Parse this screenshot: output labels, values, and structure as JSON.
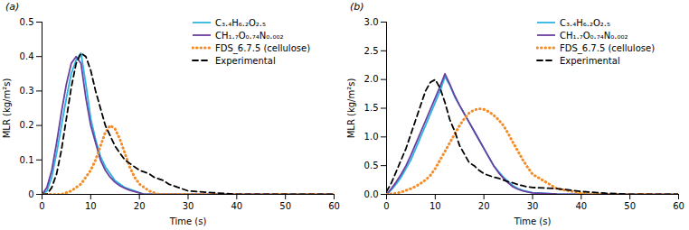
{
  "chart_data": [
    {
      "type": "line",
      "title": "(a)",
      "x_label": "Time (s)",
      "y_label": "MLR (kg/m²s)",
      "legend": "top-right",
      "x": [
        0,
        1,
        2,
        3,
        4,
        5,
        6,
        7,
        8,
        9,
        10,
        11,
        12,
        13,
        14,
        15,
        16,
        17,
        18,
        19,
        20,
        21,
        22,
        23,
        24,
        25,
        26,
        27,
        28,
        29,
        30,
        35,
        40,
        45,
        50,
        55,
        60
      ],
      "xlim": [
        0,
        60
      ],
      "xticks": [
        0,
        10,
        20,
        30,
        40,
        50,
        60
      ],
      "ylim": [
        0,
        0.5
      ],
      "yticks": [
        0,
        0.1,
        0.2,
        0.3,
        0.4,
        0.5
      ],
      "series": [
        {
          "name": "C₃.₄H₆.₂O₂.₅",
          "color": "#2bb5e3",
          "line_style": "solid",
          "values": [
            0,
            0.01,
            0.05,
            0.12,
            0.2,
            0.28,
            0.35,
            0.39,
            0.41,
            0.32,
            0.22,
            0.16,
            0.11,
            0.08,
            0.06,
            0.04,
            0.03,
            0.02,
            0.015,
            0.01,
            0.005,
            0,
            0,
            0,
            0,
            0,
            0,
            0,
            0,
            0,
            0,
            0,
            0,
            0,
            0,
            0,
            0
          ]
        },
        {
          "name": "CH₁.₇O₀.₇₄N₀.₀₀₂",
          "color": "#6b3fa0",
          "line_style": "solid",
          "values": [
            0,
            0.02,
            0.07,
            0.15,
            0.24,
            0.32,
            0.38,
            0.4,
            0.38,
            0.28,
            0.2,
            0.15,
            0.1,
            0.07,
            0.05,
            0.035,
            0.025,
            0.018,
            0.012,
            0.008,
            0.004,
            0,
            0,
            0,
            0,
            0,
            0,
            0,
            0,
            0,
            0,
            0,
            0,
            0,
            0,
            0,
            0
          ]
        },
        {
          "name": "FDS_6.7.5 (cellulose)",
          "color": "#f28c28",
          "line_style": "dotted",
          "values": [
            0,
            0,
            0,
            0,
            0,
            0.005,
            0.01,
            0.02,
            0.03,
            0.05,
            0.07,
            0.1,
            0.14,
            0.18,
            0.2,
            0.19,
            0.16,
            0.12,
            0.08,
            0.05,
            0.03,
            0.02,
            0.01,
            0.005,
            0,
            0,
            0,
            0,
            0,
            0,
            0,
            0,
            0,
            0,
            0,
            0,
            0
          ]
        },
        {
          "name": "Experimental",
          "color": "#000000",
          "line_style": "dashed",
          "values": [
            0,
            0,
            0.02,
            0.06,
            0.13,
            0.22,
            0.31,
            0.38,
            0.41,
            0.4,
            0.36,
            0.3,
            0.25,
            0.2,
            0.17,
            0.14,
            0.12,
            0.1,
            0.09,
            0.08,
            0.07,
            0.065,
            0.06,
            0.05,
            0.045,
            0.04,
            0.03,
            0.025,
            0.02,
            0.015,
            0.01,
            0.005,
            0,
            0,
            0,
            0,
            0
          ]
        }
      ]
    },
    {
      "type": "line",
      "title": "(b)",
      "x_label": "Time (s)",
      "y_label": "MLR (kg/m²s)",
      "legend": "top-right",
      "x": [
        0,
        1,
        2,
        3,
        4,
        5,
        6,
        7,
        8,
        9,
        10,
        11,
        12,
        13,
        14,
        15,
        16,
        17,
        18,
        19,
        20,
        21,
        22,
        23,
        24,
        25,
        26,
        27,
        28,
        29,
        30,
        35,
        40,
        45,
        50,
        55,
        60
      ],
      "xlim": [
        0,
        60
      ],
      "xticks": [
        0,
        10,
        20,
        30,
        40,
        50,
        60
      ],
      "ylim": [
        0,
        3
      ],
      "yticks": [
        {
          "value": 0,
          "label": "0.0"
        },
        0.5,
        {
          "value": 1,
          "label": "1.0"
        },
        1.5,
        {
          "value": 2,
          "label": "2.0"
        },
        2.5,
        {
          "value": 3,
          "label": "3.0"
        }
      ],
      "series": [
        {
          "name": "C₃.₄H₆.₂O₂.₅",
          "color": "#2bb5e3",
          "line_style": "solid",
          "values": [
            0,
            0.08,
            0.18,
            0.3,
            0.45,
            0.6,
            0.8,
            1.0,
            1.2,
            1.4,
            1.6,
            1.8,
            2.05,
            1.9,
            1.7,
            1.55,
            1.4,
            1.25,
            1.1,
            0.95,
            0.8,
            0.65,
            0.5,
            0.4,
            0.3,
            0.22,
            0.15,
            0.1,
            0.07,
            0.05,
            0.03,
            0.005,
            0,
            0,
            0,
            0,
            0
          ]
        },
        {
          "name": "CH₁.₇O₀.₇₄N₀.₀₀₂",
          "color": "#6b3fa0",
          "line_style": "solid",
          "values": [
            0,
            0.1,
            0.22,
            0.35,
            0.5,
            0.68,
            0.88,
            1.08,
            1.28,
            1.48,
            1.68,
            1.88,
            2.1,
            1.92,
            1.72,
            1.55,
            1.4,
            1.25,
            1.1,
            0.95,
            0.8,
            0.65,
            0.5,
            0.38,
            0.28,
            0.2,
            0.13,
            0.09,
            0.06,
            0.04,
            0.025,
            0.005,
            0,
            0,
            0,
            0,
            0
          ]
        },
        {
          "name": "FDS_6.7.5 (cellulose)",
          "color": "#f28c28",
          "line_style": "dotted",
          "values": [
            0,
            0.01,
            0.02,
            0.04,
            0.07,
            0.1,
            0.14,
            0.19,
            0.25,
            0.33,
            0.45,
            0.6,
            0.75,
            0.9,
            1.05,
            1.2,
            1.32,
            1.42,
            1.47,
            1.49,
            1.48,
            1.44,
            1.38,
            1.3,
            1.2,
            1.06,
            0.9,
            0.75,
            0.6,
            0.47,
            0.35,
            0.1,
            0.02,
            0,
            0,
            0,
            0
          ]
        },
        {
          "name": "Experimental",
          "color": "#000000",
          "line_style": "dashed",
          "values": [
            0.05,
            0.2,
            0.4,
            0.6,
            0.8,
            1.05,
            1.3,
            1.55,
            1.8,
            1.95,
            2.0,
            1.85,
            1.6,
            1.3,
            1.1,
            0.85,
            0.7,
            0.55,
            0.5,
            0.42,
            0.36,
            0.33,
            0.3,
            0.28,
            0.25,
            0.22,
            0.2,
            0.17,
            0.15,
            0.13,
            0.12,
            0.1,
            0.05,
            0.02,
            0,
            0,
            0
          ]
        }
      ]
    }
  ]
}
